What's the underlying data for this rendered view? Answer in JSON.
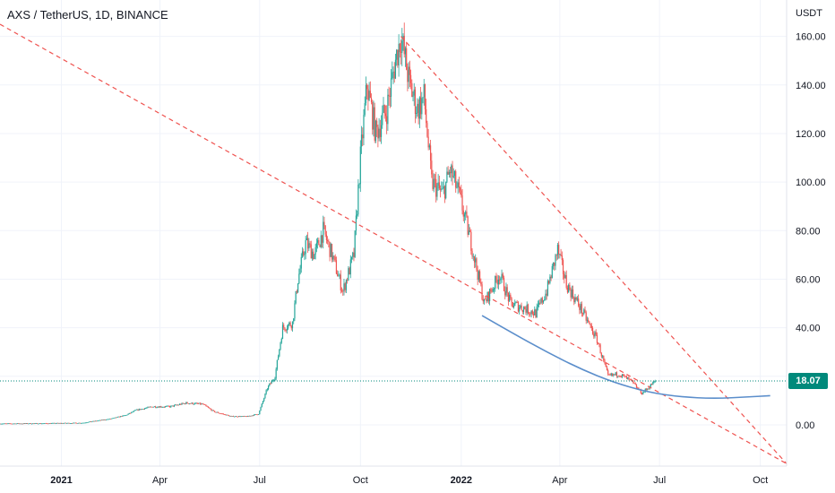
{
  "header": {
    "symbol_title": "AXS / TetherUS, 1D, BINANCE",
    "currency_label": "USDT"
  },
  "last_price": {
    "label": "18.07",
    "value": 18.07,
    "color": "#00897b"
  },
  "colors": {
    "up": "#26a69a",
    "down": "#ef5350",
    "trendline": "#ef5350",
    "curve": "#5b8ecb",
    "grid": "#f0f3fa",
    "price_line": "#00897b"
  },
  "chart_data": {
    "type": "candlestick",
    "title": "AXS / TetherUS, 1D, BINANCE",
    "ylim": [
      -17,
      175
    ],
    "y_ticks": [
      "160.00",
      "140.00",
      "120.00",
      "100.00",
      "80.00",
      "60.00",
      "40.00",
      "20.00",
      "0.00"
    ],
    "y_tick_values": [
      160,
      140,
      120,
      100,
      80,
      60,
      40,
      20,
      0
    ],
    "x_ticks": [
      "2021",
      "Apr",
      "Jul",
      "Oct",
      "2022",
      "Apr",
      "Jul",
      "Oct"
    ],
    "x_tick_dates": [
      "2021-01-01",
      "2021-04-01",
      "2021-07-01",
      "2021-10-01",
      "2022-01-01",
      "2022-04-01",
      "2022-07-01",
      "2022-10-01"
    ],
    "x_range": [
      "2020-11-06",
      "2022-10-25"
    ],
    "grid": true,
    "price_anchors": [
      [
        "2020-11-06",
        0.5
      ],
      [
        "2020-12-15",
        0.6
      ],
      [
        "2021-01-20",
        0.8
      ],
      [
        "2021-02-15",
        2.5
      ],
      [
        "2021-03-01",
        4.0
      ],
      [
        "2021-03-10",
        6.0
      ],
      [
        "2021-03-25",
        7.5
      ],
      [
        "2021-04-10",
        7.5
      ],
      [
        "2021-04-25",
        9.0
      ],
      [
        "2021-05-10",
        8.5
      ],
      [
        "2021-05-20",
        5.5
      ],
      [
        "2021-06-05",
        3.5
      ],
      [
        "2021-06-20",
        3.5
      ],
      [
        "2021-06-30",
        4.5
      ],
      [
        "2021-07-08",
        15.0
      ],
      [
        "2021-07-15",
        20.0
      ],
      [
        "2021-07-22",
        40.0
      ],
      [
        "2021-07-31",
        42.0
      ],
      [
        "2021-08-05",
        60.0
      ],
      [
        "2021-08-12",
        75.0
      ],
      [
        "2021-08-20",
        70.0
      ],
      [
        "2021-08-28",
        80.0
      ],
      [
        "2021-09-05",
        70.0
      ],
      [
        "2021-09-15",
        55.0
      ],
      [
        "2021-09-25",
        70.0
      ],
      [
        "2021-10-01",
        110.0
      ],
      [
        "2021-10-07",
        140.0
      ],
      [
        "2021-10-15",
        120.0
      ],
      [
        "2021-10-25",
        130.0
      ],
      [
        "2021-11-02",
        150.0
      ],
      [
        "2021-11-07",
        160.0
      ],
      [
        "2021-11-15",
        140.0
      ],
      [
        "2021-11-22",
        130.0
      ],
      [
        "2021-11-28",
        135.0
      ],
      [
        "2021-12-05",
        100.0
      ],
      [
        "2021-12-15",
        95.0
      ],
      [
        "2021-12-22",
        105.0
      ],
      [
        "2021-12-30",
        95.0
      ],
      [
        "2022-01-10",
        75.0
      ],
      [
        "2022-01-22",
        50.0
      ],
      [
        "2022-02-05",
        62.0
      ],
      [
        "2022-02-15",
        50.0
      ],
      [
        "2022-02-28",
        48.0
      ],
      [
        "2022-03-10",
        46.0
      ],
      [
        "2022-03-20",
        55.0
      ],
      [
        "2022-03-30",
        72.0
      ],
      [
        "2022-04-07",
        58.0
      ],
      [
        "2022-04-20",
        48.0
      ],
      [
        "2022-05-05",
        35.0
      ],
      [
        "2022-05-15",
        20.0
      ],
      [
        "2022-05-25",
        21.0
      ],
      [
        "2022-06-05",
        18.0
      ],
      [
        "2022-06-15",
        13.0
      ],
      [
        "2022-06-20",
        15.0
      ],
      [
        "2022-06-27",
        18.07
      ]
    ],
    "trendlines": [
      {
        "name": "",
        "from": [
          "2020-11-06",
          165.0
        ],
        "to": [
          "2022-10-25",
          -16.0
        ]
      },
      {
        "name": "",
        "from": [
          "2021-11-07",
          160.0
        ],
        "to": [
          "2022-10-25",
          -16.0
        ]
      }
    ],
    "curve": {
      "points": [
        [
          "2022-01-20",
          45.0
        ],
        [
          "2022-02-20",
          37.0
        ],
        [
          "2022-03-20",
          30.0
        ],
        [
          "2022-04-20",
          23.0
        ],
        [
          "2022-05-20",
          17.5
        ],
        [
          "2022-06-20",
          13.5
        ],
        [
          "2022-07-20",
          11.5
        ],
        [
          "2022-08-20",
          10.8
        ],
        [
          "2022-09-20",
          11.5
        ],
        [
          "2022-10-10",
          12.0
        ]
      ]
    }
  }
}
